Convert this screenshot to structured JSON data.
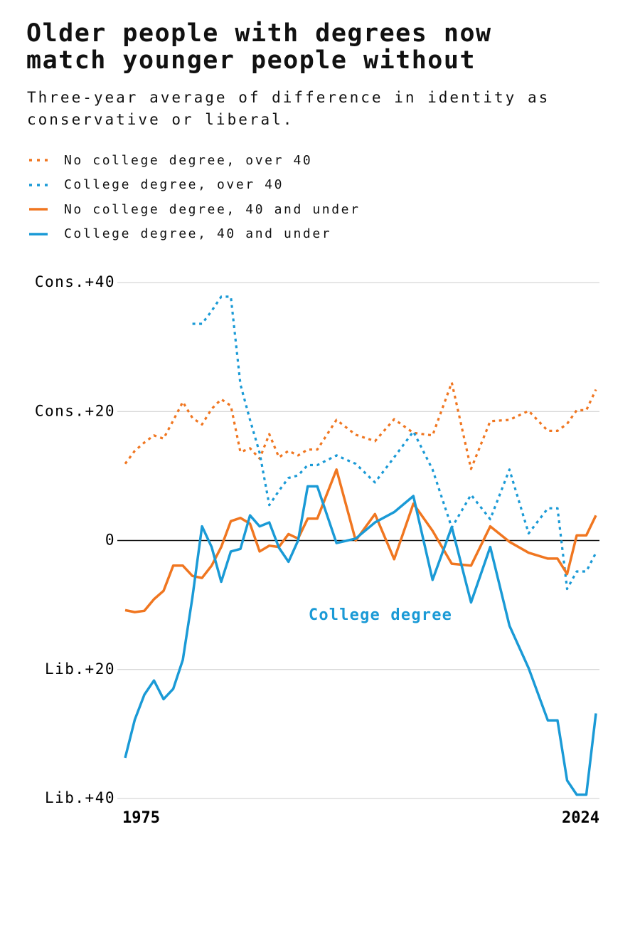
{
  "chart_data": {
    "type": "line",
    "title": "Older people with degrees now match younger people without",
    "subtitle": "Three-year average of difference in identity as conservative or liberal.",
    "annotation": "College degree",
    "x": [
      1975,
      1976,
      1977,
      1978,
      1979,
      1980,
      1981,
      1982,
      1983,
      1984,
      1985,
      1986,
      1987,
      1988,
      1989,
      1990,
      1991,
      1992,
      1993,
      1994,
      1995,
      1997,
      1999,
      2001,
      2003,
      2005,
      2007,
      2009,
      2011,
      2013,
      2015,
      2017,
      2019,
      2020,
      2021,
      2022,
      2023,
      2024
    ],
    "xlim": [
      1975,
      2024
    ],
    "xticks": [
      1975,
      2024
    ],
    "ylim": [
      -40,
      40
    ],
    "yticks": [
      {
        "value": 40,
        "label": "Cons.+40"
      },
      {
        "value": 20,
        "label": "Cons.+20"
      },
      0,
      {
        "value": -20,
        "label": "Lib.+20"
      },
      {
        "value": -40,
        "label": "Lib.+40"
      }
    ],
    "grid": true,
    "series": [
      {
        "name": "No college degree, over 40",
        "color": "#f07620",
        "dashed": true,
        "values": [
          11.9,
          13.9,
          15.2,
          16.3,
          15.8,
          18.6,
          21.5,
          19.0,
          18.0,
          20.4,
          21.9,
          20.9,
          13.7,
          14.3,
          12.7,
          16.5,
          12.9,
          13.9,
          13.2,
          14.1,
          14.1,
          18.7,
          16.4,
          15.4,
          18.8,
          16.7,
          16.3,
          24.5,
          11.1,
          18.5,
          18.7,
          20.1,
          17.0,
          17.0,
          18.1,
          20.2,
          20.2,
          23.4
        ]
      },
      {
        "name": "College degree, over 40",
        "color": "#1a9ad6",
        "dashed": true,
        "values": [
          null,
          null,
          null,
          null,
          null,
          null,
          null,
          33.6,
          33.6,
          35.6,
          37.8,
          37.8,
          24.2,
          18.7,
          13.6,
          5.5,
          7.7,
          9.7,
          10.1,
          11.7,
          11.7,
          13.2,
          11.9,
          9.0,
          12.9,
          16.9,
          11.0,
          2.0,
          7.1,
          3.3,
          11.0,
          1.1,
          5.0,
          5.0,
          -7.5,
          -4.8,
          -4.8,
          -1.9
        ]
      },
      {
        "name": "No college degree, 40 and under",
        "color": "#f07620",
        "dashed": false,
        "values": [
          -10.8,
          -11.1,
          -10.9,
          -9.1,
          -7.8,
          -3.9,
          -3.9,
          -5.5,
          -5.8,
          -3.9,
          -1.0,
          3.0,
          3.5,
          2.6,
          -1.7,
          -0.8,
          -1.0,
          1.0,
          0.3,
          3.4,
          3.4,
          11.0,
          0,
          4.1,
          -2.9,
          5.7,
          1.5,
          -3.6,
          -3.9,
          2.2,
          -0.2,
          -1.9,
          -2.8,
          -2.8,
          -5.2,
          0.8,
          0.8,
          3.9
        ]
      },
      {
        "name": "College degree, 40 and under",
        "color": "#1a9ad6",
        "dashed": false,
        "values": [
          -33.7,
          -27.8,
          -23.9,
          -21.7,
          -24.6,
          -23.0,
          -18.5,
          -8.8,
          2.2,
          -1.0,
          -6.4,
          -1.7,
          -1.3,
          3.9,
          2.2,
          2.8,
          -1.1,
          -3.3,
          0,
          8.4,
          8.4,
          -0.4,
          0.3,
          2.8,
          4.4,
          6.9,
          -6.1,
          2.1,
          -9.6,
          -1.0,
          -13.2,
          -19.8,
          -27.9,
          -27.9,
          -37.2,
          -39.4,
          -39.4,
          -26.8
        ]
      }
    ]
  }
}
